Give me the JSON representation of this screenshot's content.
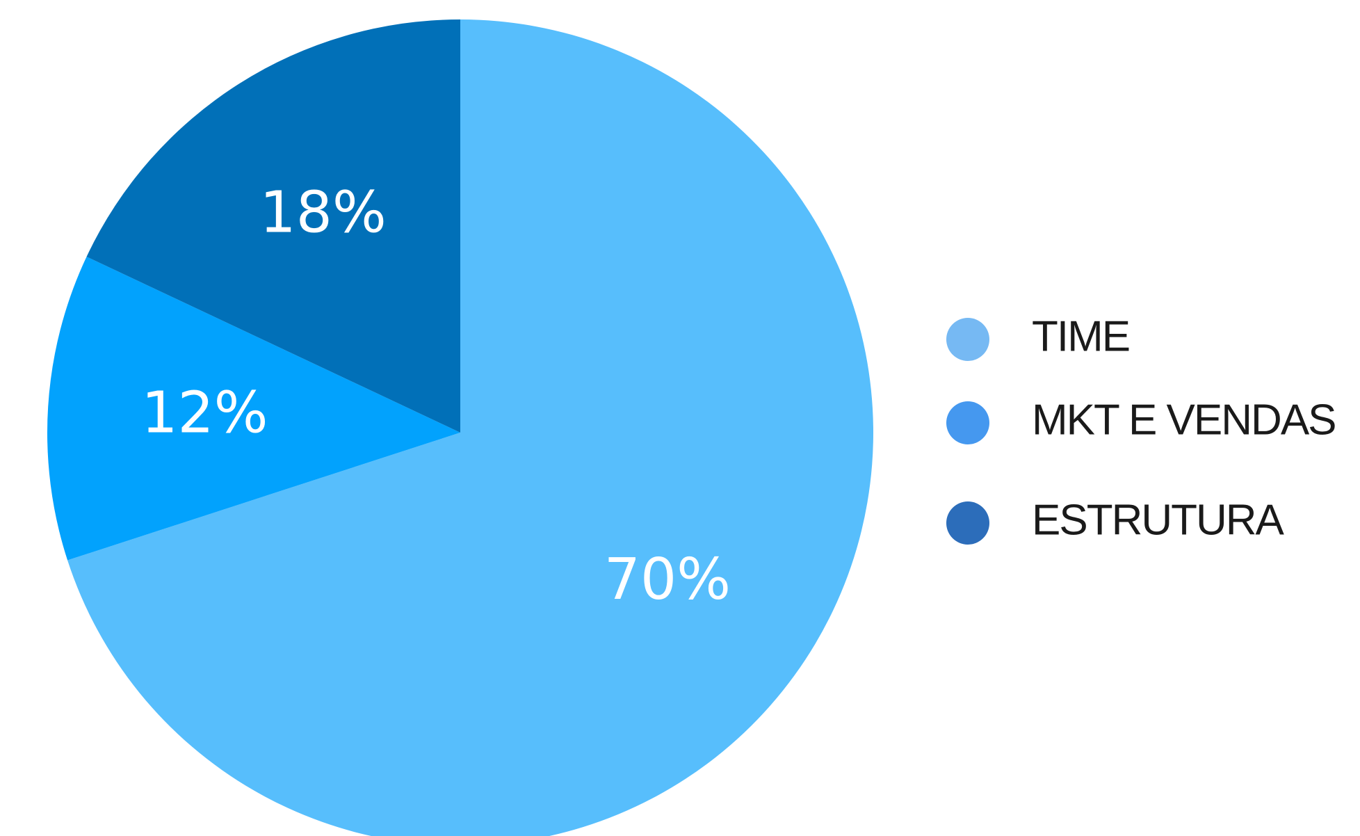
{
  "chart_data": {
    "type": "pie",
    "title": "",
    "slices": [
      {
        "name": "TIME",
        "value": 70,
        "label": "70%",
        "color": "#57BEFC",
        "legend_color": "#76B9F3"
      },
      {
        "name": "MKT E VENDAS",
        "value": 12,
        "label": "12%",
        "color": "#02A2FD",
        "legend_color": "#4598EF"
      },
      {
        "name": "ESTRUTURA",
        "value": 18,
        "label": "18%",
        "color": "#0170B8",
        "legend_color": "#2C6DBA"
      }
    ],
    "start_angle_deg": 0,
    "direction": "clockwise",
    "legend_position": "right"
  }
}
